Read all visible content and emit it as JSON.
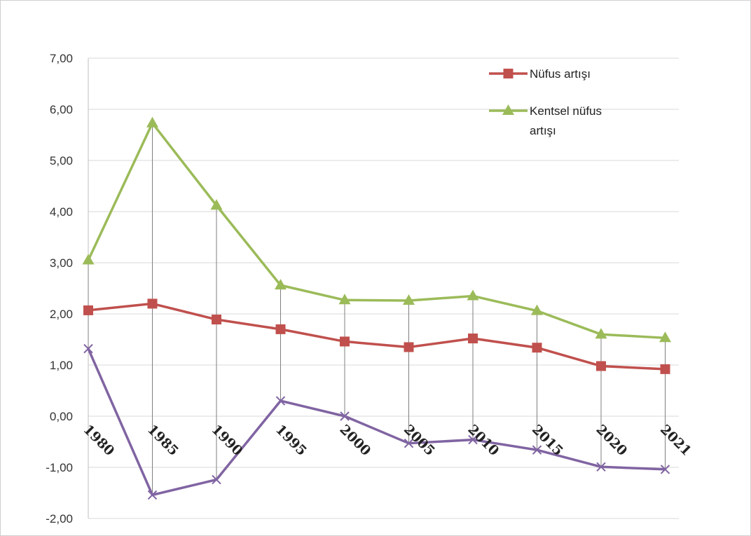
{
  "chart_data": {
    "type": "line",
    "title": "",
    "xlabel": "",
    "ylabel": "",
    "categories": [
      "1980",
      "1985",
      "1990",
      "1995",
      "2000",
      "2005",
      "2010",
      "2015",
      "2020",
      "2021"
    ],
    "ylim": [
      -2.0,
      7.0
    ],
    "yticks": [
      "-2,00",
      "-1,00",
      "0,00",
      "1,00",
      "2,00",
      "3,00",
      "4,00",
      "5,00",
      "6,00",
      "7,00"
    ],
    "grid": true,
    "drop_lines": true,
    "legend_position": "top-right",
    "series": [
      {
        "name": "Nüfus artışı",
        "color": "#c0504d",
        "marker": "square",
        "values": [
          2.07,
          2.2,
          1.89,
          1.7,
          1.46,
          1.35,
          1.52,
          1.34,
          0.98,
          0.92
        ]
      },
      {
        "name": "Kentsel nüfus artışı",
        "legend_lines": [
          "Kentsel nüfus",
          "artışı"
        ],
        "color": "#9bbb59",
        "marker": "triangle",
        "values": [
          3.05,
          5.73,
          4.12,
          2.56,
          2.27,
          2.26,
          2.35,
          2.06,
          1.6,
          1.53
        ]
      },
      {
        "color": "#8064a2",
        "marker": "x",
        "values": [
          1.32,
          -1.54,
          -1.24,
          0.3,
          0.0,
          -0.53,
          -0.46,
          -0.66,
          -0.99,
          -1.04
        ]
      }
    ]
  }
}
